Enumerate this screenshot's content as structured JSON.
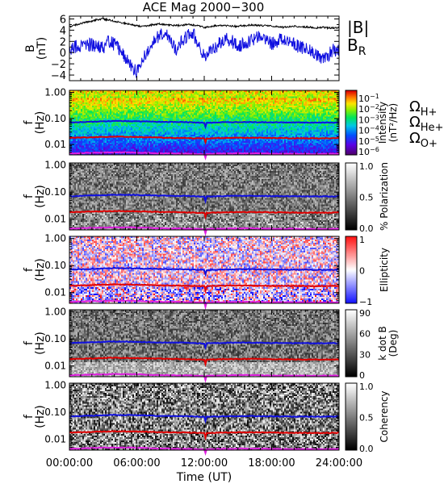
{
  "chart_data": {
    "type": "multi-panel",
    "title": "ACE Mag 2000−300",
    "x_axis": {
      "label": "Time (UT)",
      "range_hours": [
        0,
        24
      ],
      "ticks_hours": [
        0,
        6,
        12,
        18,
        24
      ],
      "tick_labels": [
        "00:00:00",
        "06:00:00",
        "12:00:00",
        "18:00:00",
        "24:00:00"
      ]
    },
    "panels": [
      {
        "type": "line",
        "ylabel_top": "B",
        "ylabel_bottom": "(nT)",
        "ylim": [
          -5,
          6.5
        ],
        "yticks": [
          -4,
          -2,
          0,
          2,
          4,
          6
        ],
        "ytick_labels": [
          "−4",
          "−2",
          "0",
          "2",
          "4",
          "6"
        ],
        "series": [
          {
            "name": "|B|",
            "color": "#000000",
            "x": [
              0,
              0.5,
              1,
              1.5,
              2,
              2.5,
              3,
              3.5,
              4,
              4.5,
              5,
              5.5,
              6,
              6.5,
              7,
              7.5,
              8,
              8.5,
              9,
              9.5,
              10,
              10.5,
              11,
              11.5,
              12,
              12.5,
              13,
              13.5,
              14,
              14.5,
              15,
              15.5,
              16,
              16.5,
              17,
              17.5,
              18,
              18.5,
              19,
              19.5,
              20,
              20.5,
              21,
              21.5,
              22,
              22.5,
              23,
              23.5,
              24
            ],
            "values": [
              4.6,
              4.9,
              5.2,
              5.4,
              5.6,
              5.9,
              6.0,
              5.8,
              5.6,
              5.4,
              5.2,
              5.0,
              4.8,
              4.7,
              4.8,
              5.0,
              5.1,
              5.0,
              4.9,
              4.8,
              4.9,
              5.0,
              4.9,
              4.8,
              4.5,
              4.6,
              4.8,
              4.9,
              4.8,
              4.7,
              4.7,
              4.8,
              4.9,
              4.9,
              4.8,
              4.8,
              4.7,
              4.6,
              4.5,
              4.6,
              4.7,
              4.6,
              4.6,
              4.5,
              4.4,
              4.5,
              4.4,
              4.4,
              4.5
            ]
          },
          {
            "name": "B",
            "subscript": "R",
            "color": "#1010e0",
            "x": [
              0,
              0.5,
              1,
              1.5,
              2,
              2.5,
              3,
              3.5,
              4,
              4.5,
              5,
              5.5,
              6,
              6.5,
              7,
              7.5,
              8,
              8.5,
              9,
              9.5,
              10,
              10.5,
              11,
              11.5,
              12,
              12.5,
              13,
              13.5,
              14,
              14.5,
              15,
              15.5,
              16,
              16.5,
              17,
              17.5,
              18,
              18.5,
              19,
              19.5,
              20,
              20.5,
              21,
              21.5,
              22,
              22.5,
              23,
              23.5,
              24
            ],
            "values": [
              0.5,
              1.0,
              1.2,
              1.5,
              1.4,
              1.2,
              0.8,
              2.0,
              1.5,
              0.5,
              -1.0,
              -2.5,
              -3.5,
              -1.0,
              0.5,
              2.0,
              3.0,
              3.5,
              2.0,
              0.5,
              2.0,
              3.0,
              3.5,
              1.0,
              -0.5,
              0.0,
              1.0,
              2.0,
              2.5,
              2.0,
              1.0,
              1.5,
              2.0,
              2.5,
              3.0,
              2.5,
              1.5,
              2.0,
              2.5,
              2.0,
              1.5,
              1.0,
              0.8,
              0.5,
              -0.5,
              -1.0,
              -0.5,
              0.5,
              0.5
            ]
          }
        ]
      },
      {
        "type": "heatmap",
        "ylabel_top": "f",
        "ylabel_bottom": "(Hz)",
        "yscale": "log",
        "ylim": [
          0.004,
          1.2
        ],
        "yticks": [
          0.01,
          0.1,
          1.0
        ],
        "ytick_labels": [
          "0.01",
          "0.10",
          "1.00"
        ],
        "colormap": "rainbow",
        "colorbar": {
          "label_line1": "Intensity",
          "label_line2": "(nT²/Hz)",
          "scale": "log",
          "ticks": [
            {
              "base": "10",
              "exp": "−1"
            },
            {
              "base": "10",
              "exp": "−2"
            },
            {
              "base": "10",
              "exp": "−3"
            },
            {
              "base": "10",
              "exp": "−4"
            },
            {
              "base": "10",
              "exp": "−5"
            },
            {
              "base": "10",
              "exp": "−6"
            }
          ]
        }
      },
      {
        "type": "heatmap",
        "ylabel_top": "f",
        "ylabel_bottom": "(Hz)",
        "yscale": "log",
        "ylim": [
          0.004,
          1.2
        ],
        "yticks": [
          0.01,
          0.1,
          1.0
        ],
        "ytick_labels": [
          "0.01",
          "0.10",
          "1.00"
        ],
        "colormap": "gray",
        "colorbar": {
          "label_line1": "% Polarization",
          "label_line2": "",
          "ticks": [
            "0.0",
            "0.5",
            "1.0"
          ]
        }
      },
      {
        "type": "heatmap",
        "ylabel_top": "f",
        "ylabel_bottom": "(Hz)",
        "yscale": "log",
        "ylim": [
          0.004,
          1.2
        ],
        "yticks": [
          0.01,
          0.1,
          1.0
        ],
        "ytick_labels": [
          "0.01",
          "0.10",
          "1.00"
        ],
        "colormap": "blue-white-red",
        "colorbar": {
          "label_line1": "Ellipticity",
          "label_line2": "",
          "ticks": [
            "−1",
            "0",
            "1"
          ]
        }
      },
      {
        "type": "heatmap",
        "ylabel_top": "f",
        "ylabel_bottom": "(Hz)",
        "yscale": "log",
        "ylim": [
          0.004,
          1.2
        ],
        "yticks": [
          0.01,
          0.1,
          1.0
        ],
        "ytick_labels": [
          "0.01",
          "0.10",
          "1.00"
        ],
        "colormap": "gray",
        "colorbar": {
          "label_line1": "k dot B",
          "label_line2": "(Deg)",
          "ticks": [
            "0",
            "30",
            "60",
            "90"
          ]
        }
      },
      {
        "type": "heatmap",
        "ylabel_top": "f",
        "ylabel_bottom": "(Hz)",
        "yscale": "log",
        "ylim": [
          0.004,
          1.2
        ],
        "yticks": [
          0.01,
          0.1,
          1.0
        ],
        "ytick_labels": [
          "0.01",
          "0.10",
          "1.00"
        ],
        "colormap": "gray",
        "colorbar": {
          "label_line1": "Coherency",
          "label_line2": "",
          "ticks": [
            "0.0",
            "0.5",
            "1.0"
          ]
        }
      }
    ],
    "gyrofrequency_lines": [
      {
        "symbol": "Ω",
        "subscript": "H+",
        "color": "#1010e0",
        "x": [
          0,
          2,
          4,
          6,
          8,
          10,
          12,
          14,
          16,
          18,
          20,
          22,
          24
        ],
        "values": [
          0.07,
          0.075,
          0.08,
          0.078,
          0.074,
          0.073,
          0.068,
          0.072,
          0.073,
          0.071,
          0.07,
          0.069,
          0.07
        ]
      },
      {
        "symbol": "Ω",
        "subscript": "He+",
        "color": "#e00000",
        "x": [
          0,
          2,
          4,
          6,
          8,
          10,
          12,
          14,
          16,
          18,
          20,
          22,
          24
        ],
        "values": [
          0.018,
          0.019,
          0.02,
          0.0195,
          0.0185,
          0.018,
          0.017,
          0.018,
          0.0182,
          0.0178,
          0.0175,
          0.0172,
          0.0175
        ]
      },
      {
        "symbol": "Ω",
        "subscript": "O+",
        "color": "#e020e0",
        "x": [
          0,
          2,
          4,
          6,
          8,
          10,
          12,
          14,
          16,
          18,
          20,
          22,
          24
        ],
        "values": [
          0.0045,
          0.0048,
          0.005,
          0.0049,
          0.0046,
          0.0045,
          0.0043,
          0.0045,
          0.0046,
          0.0044,
          0.0044,
          0.0043,
          0.0044
        ]
      }
    ],
    "legend": {
      "B_labels": [
        {
          "text": "|B|",
          "sub": "",
          "color": "#000000"
        },
        {
          "text": "B",
          "sub": "R",
          "color": "#1010e0"
        }
      ],
      "omega_labels": [
        {
          "text": "Ω",
          "sub": "H+",
          "color": "#1010e0"
        },
        {
          "text": "Ω",
          "sub": "He+",
          "color": "#e00000"
        },
        {
          "text": "Ω",
          "sub": "O+",
          "color": "#e020e0"
        }
      ]
    }
  }
}
